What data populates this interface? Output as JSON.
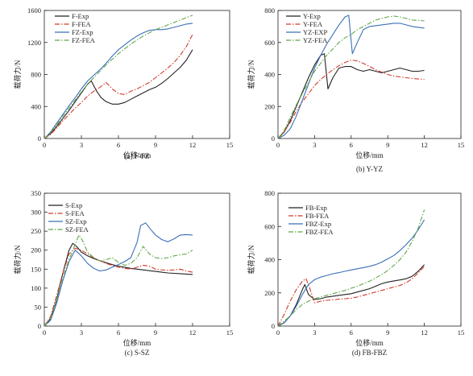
{
  "chart_data": [
    {
      "id": "a",
      "type": "line",
      "caption": "(a) F-FZ",
      "xlabel": "位移/mm",
      "ylabel": "载荷力/N",
      "xlim": [
        0,
        15
      ],
      "ylim": [
        0,
        1600
      ],
      "xticks": [
        0,
        3,
        6,
        9,
        12,
        15
      ],
      "yticks": [
        0,
        400,
        800,
        1200,
        1600
      ],
      "grid": false,
      "legend_position": "top-left",
      "series": [
        {
          "name": "F-Exp",
          "color": "#222222",
          "dash": "solid",
          "x": [
            0,
            0.5,
            1,
            1.5,
            2,
            2.5,
            3,
            3.5,
            3.8,
            4.2,
            4.6,
            5,
            5.5,
            6,
            6.5,
            7,
            7.5,
            8,
            8.5,
            9,
            9.5,
            10,
            10.5,
            11,
            11.5,
            12
          ],
          "y": [
            0,
            60,
            150,
            250,
            350,
            460,
            570,
            680,
            720,
            600,
            510,
            460,
            430,
            430,
            450,
            490,
            530,
            570,
            610,
            640,
            690,
            750,
            820,
            890,
            980,
            1110
          ]
        },
        {
          "name": "F-FEA",
          "color": "#d33a2c",
          "dash": "dashdot",
          "x": [
            0,
            0.5,
            1,
            1.5,
            2,
            2.5,
            3,
            3.5,
            4,
            4.5,
            5,
            5.5,
            6,
            6.5,
            7,
            7.5,
            8,
            8.5,
            9,
            9.5,
            10,
            10.5,
            11,
            11.5,
            12
          ],
          "y": [
            0,
            50,
            130,
            220,
            300,
            380,
            450,
            530,
            590,
            640,
            700,
            620,
            560,
            550,
            590,
            620,
            660,
            700,
            760,
            820,
            880,
            950,
            1040,
            1150,
            1300
          ]
        },
        {
          "name": "FZ-Exp",
          "color": "#3a6fb8",
          "dash": "solid",
          "x": [
            0,
            0.5,
            1,
            1.5,
            2,
            2.5,
            3,
            3.5,
            4,
            4.5,
            5,
            5.5,
            6,
            6.5,
            7,
            7.5,
            8,
            8.5,
            9,
            9.5,
            10,
            10.5,
            11,
            11.5,
            12
          ],
          "y": [
            0,
            80,
            190,
            300,
            410,
            510,
            620,
            720,
            790,
            860,
            940,
            1030,
            1110,
            1170,
            1230,
            1280,
            1320,
            1350,
            1360,
            1360,
            1370,
            1390,
            1410,
            1430,
            1440
          ]
        },
        {
          "name": "FZ-FEA",
          "color": "#62a84a",
          "dash": "dashdot",
          "x": [
            0,
            0.5,
            1,
            1.5,
            2,
            2.5,
            3,
            3.5,
            4,
            4.5,
            5,
            5.5,
            6,
            6.5,
            7,
            7.5,
            8,
            8.5,
            9,
            9.5,
            10,
            10.5,
            11,
            11.5,
            12
          ],
          "y": [
            0,
            70,
            170,
            280,
            380,
            480,
            580,
            680,
            760,
            840,
            920,
            990,
            1060,
            1120,
            1180,
            1230,
            1280,
            1320,
            1360,
            1390,
            1420,
            1450,
            1480,
            1510,
            1540
          ]
        }
      ]
    },
    {
      "id": "b",
      "type": "line",
      "caption": "(b) Y-YZ",
      "xlabel": "位移/mm",
      "ylabel": "载荷力/N",
      "xlim": [
        0,
        15
      ],
      "ylim": [
        0,
        800
      ],
      "xticks": [
        0,
        3,
        6,
        9,
        12,
        15
      ],
      "yticks": [
        0,
        200,
        400,
        600,
        800
      ],
      "grid": false,
      "legend_position": "top-left",
      "series": [
        {
          "name": "Y-Exp",
          "color": "#222222",
          "dash": "solid",
          "x": [
            0,
            0.5,
            1,
            1.5,
            2,
            2.5,
            3,
            3.5,
            3.8,
            4.1,
            4.5,
            5,
            5.5,
            6,
            6.5,
            7,
            7.5,
            8,
            8.5,
            9,
            9.5,
            10,
            10.5,
            11,
            11.5,
            12
          ],
          "y": [
            0,
            40,
            110,
            200,
            290,
            380,
            460,
            520,
            530,
            310,
            380,
            440,
            450,
            450,
            430,
            420,
            430,
            420,
            410,
            420,
            430,
            440,
            430,
            420,
            420,
            425
          ]
        },
        {
          "name": "Y-FEA",
          "color": "#d33a2c",
          "dash": "dashdot",
          "x": [
            0,
            0.5,
            1,
            1.5,
            2,
            2.5,
            3,
            3.5,
            4,
            4.5,
            5,
            5.5,
            6,
            6.5,
            7,
            7.5,
            8,
            8.5,
            9,
            9.5,
            10,
            10.5,
            11,
            11.5,
            12
          ],
          "y": [
            0,
            40,
            100,
            170,
            230,
            280,
            330,
            370,
            400,
            430,
            455,
            475,
            490,
            485,
            470,
            450,
            430,
            415,
            400,
            390,
            385,
            380,
            375,
            372,
            370
          ]
        },
        {
          "name": "YZ-EXP",
          "color": "#3a6fb8",
          "dash": "solid",
          "x": [
            0,
            0.5,
            1,
            1.5,
            2,
            2.5,
            3,
            3.5,
            4,
            4.5,
            5,
            5.5,
            5.8,
            6.1,
            6.5,
            7,
            7.5,
            8,
            8.5,
            9,
            9.5,
            10,
            10.5,
            11,
            11.5,
            12
          ],
          "y": [
            0,
            20,
            60,
            140,
            240,
            340,
            440,
            520,
            590,
            650,
            710,
            760,
            770,
            530,
            600,
            680,
            700,
            705,
            710,
            715,
            720,
            720,
            710,
            700,
            695,
            690
          ]
        },
        {
          "name": "YZ-FEA",
          "color": "#62a84a",
          "dash": "dashdot",
          "x": [
            0,
            0.5,
            1,
            1.5,
            2,
            2.5,
            3,
            3.5,
            4,
            4.5,
            5,
            5.5,
            6,
            6.5,
            7,
            7.5,
            8,
            8.5,
            9,
            9.5,
            10,
            10.5,
            11,
            11.5,
            12
          ],
          "y": [
            0,
            50,
            130,
            210,
            280,
            350,
            420,
            470,
            520,
            560,
            600,
            630,
            650,
            680,
            700,
            720,
            740,
            750,
            760,
            765,
            760,
            750,
            740,
            738,
            735
          ]
        }
      ]
    },
    {
      "id": "c",
      "type": "line",
      "caption": "(c) S-SZ",
      "xlabel": "位移/mm",
      "ylabel": "载荷力/N",
      "xlim": [
        0,
        15
      ],
      "ylim": [
        0,
        350
      ],
      "xticks": [
        0,
        3,
        6,
        9,
        12,
        15
      ],
      "yticks": [
        0,
        50,
        100,
        150,
        200,
        250,
        300,
        350
      ],
      "grid": false,
      "legend_position": "top-left",
      "series": [
        {
          "name": "S-Exp",
          "color": "#222222",
          "dash": "solid",
          "x": [
            0,
            0.5,
            1,
            1.5,
            2,
            2.3,
            2.6,
            3,
            3.5,
            4,
            4.5,
            5,
            5.5,
            6,
            6.5,
            7,
            7.5,
            8,
            8.5,
            9,
            9.5,
            10,
            10.5,
            11,
            11.5,
            12
          ],
          "y": [
            0,
            20,
            70,
            140,
            200,
            218,
            210,
            195,
            185,
            178,
            172,
            167,
            162,
            158,
            155,
            152,
            150,
            148,
            146,
            144,
            142,
            140,
            139,
            138,
            137,
            136
          ]
        },
        {
          "name": "S-FEA",
          "color": "#d33a2c",
          "dash": "dashdot",
          "x": [
            0,
            0.5,
            1,
            1.5,
            2,
            2.5,
            3,
            3.5,
            4,
            4.5,
            5,
            5.5,
            6,
            6.5,
            7,
            7.5,
            8,
            8.5,
            9,
            9.5,
            10,
            10.5,
            11,
            11.5,
            12
          ],
          "y": [
            0,
            25,
            80,
            140,
            190,
            205,
            200,
            190,
            180,
            172,
            165,
            160,
            155,
            152,
            150,
            155,
            160,
            158,
            150,
            148,
            147,
            148,
            150,
            145,
            142
          ]
        },
        {
          "name": "SZ-Exp",
          "color": "#3a6fb8",
          "dash": "solid",
          "x": [
            0,
            0.5,
            1,
            1.5,
            2,
            2.5,
            3,
            3.5,
            4,
            4.5,
            5,
            5.5,
            6,
            6.5,
            7,
            7.5,
            7.8,
            8.2,
            8.6,
            9,
            9.5,
            10,
            10.5,
            11,
            11.5,
            12
          ],
          "y": [
            0,
            15,
            60,
            120,
            170,
            200,
            185,
            165,
            152,
            145,
            148,
            155,
            162,
            170,
            180,
            220,
            265,
            272,
            255,
            240,
            228,
            222,
            230,
            240,
            241,
            240
          ]
        },
        {
          "name": "SZ-FEA",
          "color": "#62a84a",
          "dash": "dashdot",
          "x": [
            0,
            0.5,
            1,
            1.5,
            2,
            2.5,
            2.8,
            3.1,
            3.5,
            4,
            4.5,
            5,
            5.5,
            6,
            6.5,
            7,
            7.5,
            8,
            8.5,
            9,
            9.5,
            10,
            10.5,
            11,
            11.5,
            12
          ],
          "y": [
            0,
            20,
            70,
            130,
            175,
            215,
            240,
            225,
            195,
            180,
            172,
            175,
            180,
            168,
            160,
            165,
            180,
            210,
            190,
            180,
            178,
            180,
            185,
            188,
            190,
            200
          ]
        }
      ]
    },
    {
      "id": "d",
      "type": "line",
      "caption": "(d) FB-FBZ",
      "xlabel": "位移/mm",
      "ylabel": "载荷力/N",
      "xlim": [
        0,
        15
      ],
      "ylim": [
        0,
        800
      ],
      "xticks": [
        0,
        3,
        6,
        9,
        12,
        15
      ],
      "yticks": [
        0,
        200,
        400,
        600,
        800
      ],
      "grid": false,
      "legend_position": "top-left",
      "series": [
        {
          "name": "FB-Exp",
          "color": "#222222",
          "dash": "solid",
          "x": [
            0,
            0.5,
            1,
            1.5,
            2,
            2.2,
            2.5,
            3,
            3.5,
            4,
            4.5,
            5,
            5.5,
            6,
            6.5,
            7,
            7.5,
            8,
            8.5,
            9,
            9.5,
            10,
            10.5,
            11,
            11.5,
            12
          ],
          "y": [
            0,
            20,
            60,
            130,
            220,
            250,
            190,
            160,
            165,
            175,
            180,
            185,
            190,
            195,
            205,
            215,
            225,
            240,
            255,
            265,
            272,
            278,
            285,
            300,
            330,
            370
          ]
        },
        {
          "name": "FB-FEA",
          "color": "#d33a2c",
          "dash": "dashdot",
          "x": [
            0,
            0.5,
            1,
            1.5,
            2,
            2.3,
            2.6,
            3,
            3.5,
            4,
            4.5,
            5,
            5.5,
            6,
            6.5,
            7,
            7.5,
            8,
            8.5,
            9,
            9.5,
            10,
            10.5,
            11,
            11.5,
            12
          ],
          "y": [
            0,
            70,
            150,
            220,
            270,
            285,
            230,
            140,
            150,
            155,
            158,
            162,
            165,
            168,
            175,
            185,
            195,
            205,
            215,
            225,
            235,
            245,
            260,
            285,
            320,
            360
          ]
        },
        {
          "name": "FBZ-Exp",
          "color": "#3a6fb8",
          "dash": "solid",
          "x": [
            0,
            0.5,
            1,
            1.5,
            2,
            2.5,
            3,
            3.5,
            4,
            4.5,
            5,
            5.5,
            6,
            6.5,
            7,
            7.5,
            8,
            8.5,
            9,
            9.5,
            10,
            10.5,
            11,
            11.5,
            12
          ],
          "y": [
            0,
            20,
            60,
            120,
            190,
            250,
            280,
            295,
            305,
            315,
            322,
            330,
            338,
            345,
            352,
            360,
            370,
            385,
            405,
            425,
            455,
            490,
            530,
            580,
            640
          ]
        },
        {
          "name": "FBZ-FEA",
          "color": "#62a84a",
          "dash": "dashdot",
          "x": [
            0,
            0.5,
            1,
            1.5,
            2,
            2.5,
            3,
            3.5,
            4,
            4.5,
            5,
            5.5,
            6,
            6.5,
            7,
            7.5,
            8,
            8.5,
            9,
            9.5,
            10,
            10.5,
            11,
            11.5,
            12
          ],
          "y": [
            0,
            30,
            60,
            100,
            130,
            150,
            165,
            175,
            185,
            195,
            205,
            215,
            228,
            240,
            255,
            270,
            290,
            310,
            335,
            365,
            400,
            445,
            510,
            590,
            700
          ]
        }
      ]
    }
  ]
}
